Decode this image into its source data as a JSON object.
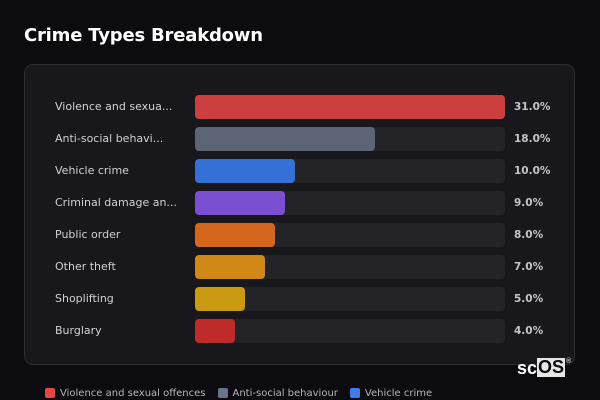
{
  "header": {
    "title": "Crime Types Breakdown"
  },
  "chart_data": {
    "type": "bar",
    "orientation": "horizontal",
    "title": "Crime Types Breakdown",
    "xlabel": "",
    "ylabel": "",
    "xlim": [
      0,
      31
    ],
    "unit": "%",
    "categories": [
      "Violence and sexual offences",
      "Anti-social behaviour",
      "Vehicle crime",
      "Criminal damage and arson",
      "Public order",
      "Other theft",
      "Shoplifting",
      "Burglary"
    ],
    "values": [
      31.0,
      18.0,
      10.0,
      9.0,
      8.0,
      7.0,
      5.0,
      4.0
    ],
    "legend_position": "bottom"
  },
  "rows": [
    {
      "label": "Violence and sexua...",
      "value": 31.0,
      "pct": "31.0%",
      "color": "#cc3f3f"
    },
    {
      "label": "Anti-social behavi...",
      "value": 18.0,
      "pct": "18.0%",
      "color": "#5b6575"
    },
    {
      "label": "Vehicle crime",
      "value": 10.0,
      "pct": "10.0%",
      "color": "#3570d6"
    },
    {
      "label": "Criminal damage an...",
      "value": 9.0,
      "pct": "9.0%",
      "color": "#7b4fd2"
    },
    {
      "label": "Public order",
      "value": 8.0,
      "pct": "8.0%",
      "color": "#d4671d"
    },
    {
      "label": "Other theft",
      "value": 7.0,
      "pct": "7.0%",
      "color": "#d08715"
    },
    {
      "label": "Shoplifting",
      "value": 5.0,
      "pct": "5.0%",
      "color": "#c99a12"
    },
    {
      "label": "Burglary",
      "value": 4.0,
      "pct": "4.0%",
      "color": "#bf2a2a"
    }
  ],
  "legend": [
    {
      "label": "Violence and sexual offences",
      "color": "#e84545"
    },
    {
      "label": "Anti-social behaviour",
      "color": "#6b7589"
    },
    {
      "label": "Vehicle crime",
      "color": "#3d7be8"
    }
  ],
  "logo": {
    "main": "sc",
    "box": "OS",
    "reg": "®"
  }
}
